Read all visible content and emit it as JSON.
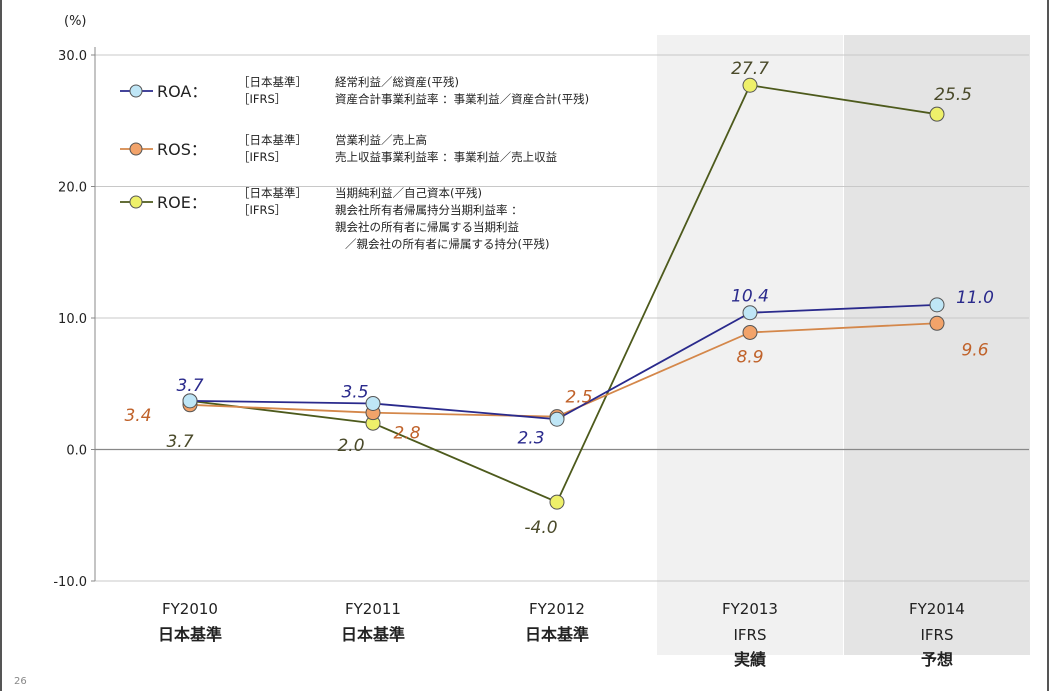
{
  "page_number": "26",
  "chart_data": {
    "type": "line",
    "y_unit": "(%)",
    "ylim": [
      -10,
      30
    ],
    "y_ticks": [
      "30.0",
      "20.0",
      "10.0",
      "0.0",
      "-10.0"
    ],
    "y_tick_values": [
      30,
      20,
      10,
      0,
      -10
    ],
    "categories": [
      {
        "label": "FY2010",
        "sub": [
          "日本基準"
        ]
      },
      {
        "label": "FY2011",
        "sub": [
          "日本基準"
        ]
      },
      {
        "label": "FY2012",
        "sub": [
          "日本基準"
        ]
      },
      {
        "label": "FY2013",
        "sub": [
          "IFRS",
          "実績"
        ]
      },
      {
        "label": "FY2014",
        "sub": [
          "IFRS",
          "予想"
        ]
      }
    ],
    "shaded_categories": [
      3,
      4
    ],
    "grid": true,
    "series": [
      {
        "name": "ROA",
        "line_color": "#2a2a8c",
        "marker_color": "#bfe6f6",
        "label_color": "#2a2a8c",
        "values": [
          3.7,
          3.5,
          2.3,
          10.4,
          11.0
        ],
        "value_labels": [
          "3.7",
          "3.5",
          "2.3",
          "10.4",
          "11.0"
        ],
        "definitions": [
          {
            "tag": "［日本基準］",
            "text": "経常利益／総資産(平残)"
          },
          {
            "tag": "［IFRS］",
            "text": "資産合計事業利益率 ：事業利益／資産合計(平残)"
          }
        ]
      },
      {
        "name": "ROS",
        "line_color": "#d4874a",
        "marker_color": "#f2a36a",
        "label_color": "#c0622a",
        "values": [
          3.4,
          2.8,
          2.5,
          8.9,
          9.6
        ],
        "value_labels": [
          "3.4",
          "2.8",
          "2.5",
          "8.9",
          "9.6"
        ],
        "definitions": [
          {
            "tag": "［日本基準］",
            "text": "営業利益／売上高"
          },
          {
            "tag": "［IFRS］",
            "text": "売上収益事業利益率 ：事業利益／売上収益"
          }
        ]
      },
      {
        "name": "ROE",
        "line_color": "#4d5a1c",
        "marker_color": "#eef06a",
        "label_color": "#4a4a2a",
        "values": [
          3.7,
          2.0,
          -4.0,
          27.7,
          25.5
        ],
        "value_labels": [
          "3.7",
          "2.0",
          "-4.0",
          "27.7",
          "25.5"
        ],
        "definitions": [
          {
            "tag": "［日本基準］",
            "text": "当期純利益／自己資本(平残)"
          },
          {
            "tag": "［IFRS］",
            "text": "親会社所有者帰属持分当期利益率 ："
          },
          {
            "tag": "",
            "text": "親会社の所有者に帰属する当期利益"
          },
          {
            "tag": "",
            "text": "／親会社の所有者に帰属する持分(平残)"
          }
        ]
      }
    ],
    "legend_position": "top-left"
  }
}
